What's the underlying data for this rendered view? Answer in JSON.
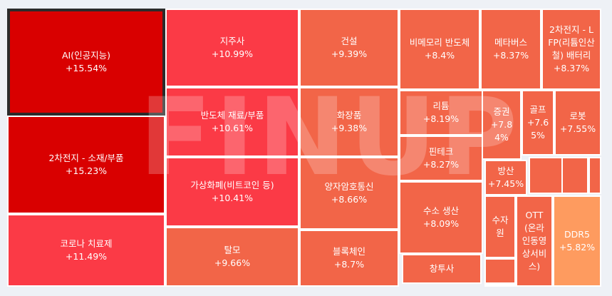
{
  "watermark": "FINUP",
  "colors": {
    "deep": "#d90000",
    "red": "#fb3a46",
    "orange": "#f26548",
    "light": "#fe9b5f"
  },
  "tiles": [
    {
      "name": "AI(인공지능)",
      "change": "+15.54%",
      "color": "deep",
      "selected": true
    },
    {
      "name": "2차전지 - 소재/부품",
      "change": "+15.23%",
      "color": "deep"
    },
    {
      "name": "코로나 치료제",
      "change": "+11.49%",
      "color": "red"
    },
    {
      "name": "지주사",
      "change": "+10.99%",
      "color": "red"
    },
    {
      "name": "반도체 재료/부품",
      "change": "+10.61%",
      "color": "red"
    },
    {
      "name": "가상화폐(비트코인 등)",
      "change": "+10.41%",
      "color": "red"
    },
    {
      "name": "탈모",
      "change": "+9.66%",
      "color": "orange"
    },
    {
      "name": "건설",
      "change": "+9.39%",
      "color": "orange"
    },
    {
      "name": "화장품",
      "change": "+9.38%",
      "color": "orange"
    },
    {
      "name": "양자암호통신",
      "change": "+8.66%",
      "color": "orange"
    },
    {
      "name": "블록체인",
      "change": "+8.7%",
      "color": "orange"
    },
    {
      "name": "비메모리 반도체",
      "change": "+8.4%",
      "color": "orange"
    },
    {
      "name": "리튬",
      "change": "+8.19%",
      "color": "orange"
    },
    {
      "name": "핀테크",
      "change": "+8.27%",
      "color": "orange"
    },
    {
      "name": "수소 생산",
      "change": "+8.09%",
      "color": "orange"
    },
    {
      "name": "창투사",
      "change": "",
      "color": "orange"
    },
    {
      "name": "메타버스",
      "change": "+8.37%",
      "color": "orange"
    },
    {
      "name": "2차전지 - L\nFP(리튬인산\n철) 배터리",
      "change": "+8.37%",
      "color": "orange"
    },
    {
      "name": "증권",
      "change": "+7.8\n4%",
      "color": "orange"
    },
    {
      "name": "골프",
      "change": "+7.6\n5%",
      "color": "orange"
    },
    {
      "name": "로봇",
      "change": "+7.55%",
      "color": "orange"
    },
    {
      "name": "방산",
      "change": "+7.45%",
      "color": "orange"
    },
    {
      "name": "수자\n원",
      "change": "",
      "color": "orange"
    },
    {
      "name": "OTT\n(온라\n인동영\n상서비\n스)",
      "change": "",
      "color": "orange"
    },
    {
      "name": "DDR5",
      "change": "+5.82%",
      "color": "light"
    },
    {
      "name": "",
      "change": "",
      "color": "orange"
    },
    {
      "name": "",
      "change": "",
      "color": "orange"
    },
    {
      "name": "",
      "change": "",
      "color": "orange"
    },
    {
      "name": "",
      "change": "",
      "color": "orange"
    },
    {
      "name": "",
      "change": "",
      "color": "orange"
    }
  ]
}
